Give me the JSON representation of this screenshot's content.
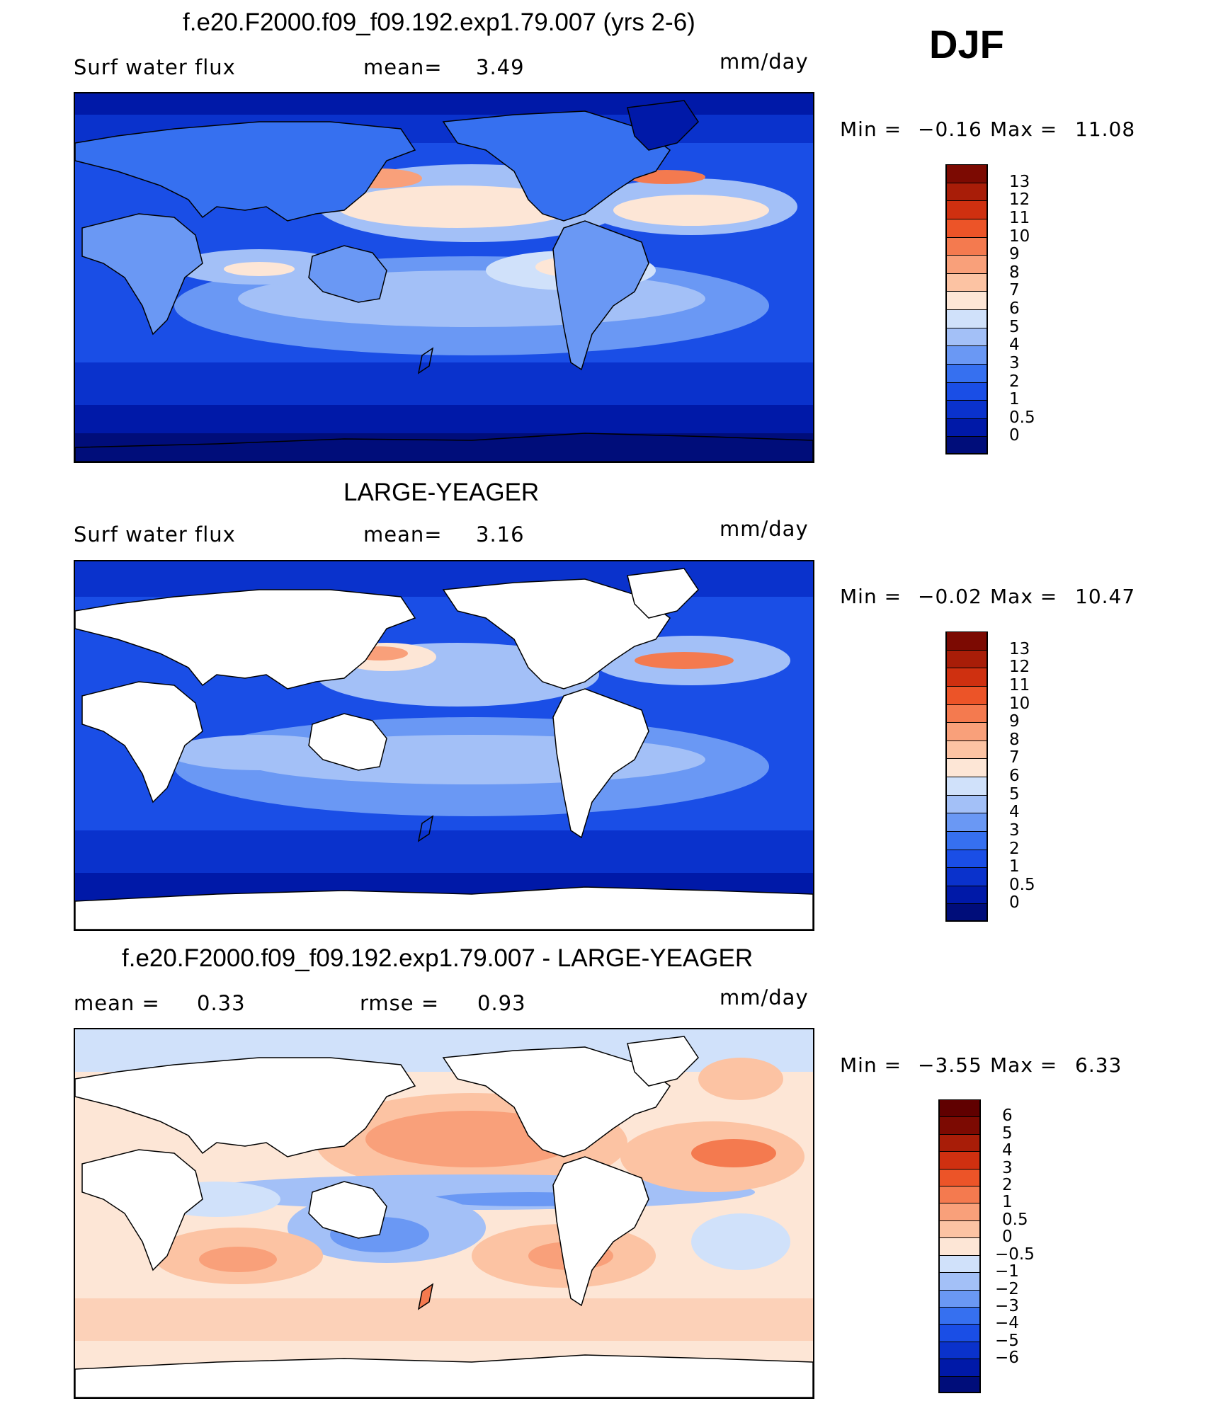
{
  "header": {
    "season": "DJF"
  },
  "panels": [
    {
      "title": "f.e20.F2000.f09_f09.192.exp1.79.007 (yrs 2-6)",
      "left_label": "Surf  water  flux",
      "mid_label": "mean=",
      "mid_value": "3.49",
      "units": "mm/day",
      "min_label": "Min  =",
      "min_value": "−0.16",
      "max_label": "Max  =",
      "max_value": "11.08",
      "map_type": "model",
      "colorbar": {
        "colors": [
          "#000d7a",
          "#0019a8",
          "#0a32cc",
          "#1a4ee6",
          "#3670f0",
          "#6a98f4",
          "#a3c0f7",
          "#d0e1fa",
          "#fde6d6",
          "#fcc3a3",
          "#f9a07a",
          "#f47a4f",
          "#ec5428",
          "#cf3010",
          "#a81d08",
          "#7c0a02"
        ],
        "ticks": [
          "13",
          "12",
          "11",
          "10",
          "9",
          "8",
          "7",
          "6",
          "5",
          "4",
          "3",
          "2",
          "1",
          "0.5",
          "0"
        ]
      }
    },
    {
      "title": "LARGE-YEAGER",
      "left_label": "Surf  water  flux",
      "mid_label": "mean=",
      "mid_value": "3.16",
      "units": "mm/day",
      "min_label": "Min  =",
      "min_value": "−0.02",
      "max_label": "Max  =",
      "max_value": "10.47",
      "map_type": "obs",
      "colorbar": {
        "colors": [
          "#000d7a",
          "#0019a8",
          "#0a32cc",
          "#1a4ee6",
          "#3670f0",
          "#6a98f4",
          "#a3c0f7",
          "#d0e1fa",
          "#fde6d6",
          "#fcc3a3",
          "#f9a07a",
          "#f47a4f",
          "#ec5428",
          "#cf3010",
          "#a81d08",
          "#7c0a02"
        ],
        "ticks": [
          "13",
          "12",
          "11",
          "10",
          "9",
          "8",
          "7",
          "6",
          "5",
          "4",
          "3",
          "2",
          "1",
          "0.5",
          "0"
        ]
      }
    },
    {
      "title": "f.e20.F2000.f09_f09.192.exp1.79.007 - LARGE-YEAGER",
      "left_label": "mean  =",
      "left_value": "0.33",
      "mid_label": "rmse  =",
      "mid_value": "0.93",
      "units": "mm/day",
      "min_label": "Min  =",
      "min_value": "−3.55",
      "max_label": "Max  =",
      "max_value": "6.33",
      "map_type": "diff",
      "colorbar": {
        "colors": [
          "#000d7a",
          "#0019a8",
          "#0a32cc",
          "#1a4ee6",
          "#3670f0",
          "#6a98f4",
          "#a3c0f7",
          "#d0e1fa",
          "#fde6d6",
          "#fcc3a3",
          "#f9a07a",
          "#f47a4f",
          "#ec5428",
          "#cf3010",
          "#a81d08",
          "#7c0a02",
          "#600000"
        ],
        "ticks": [
          "6",
          "5",
          "4",
          "3",
          "2",
          "1",
          "0.5",
          "0",
          "−0.5",
          "−1",
          "−2",
          "−3",
          "−4",
          "−5",
          "−6"
        ]
      }
    }
  ]
}
